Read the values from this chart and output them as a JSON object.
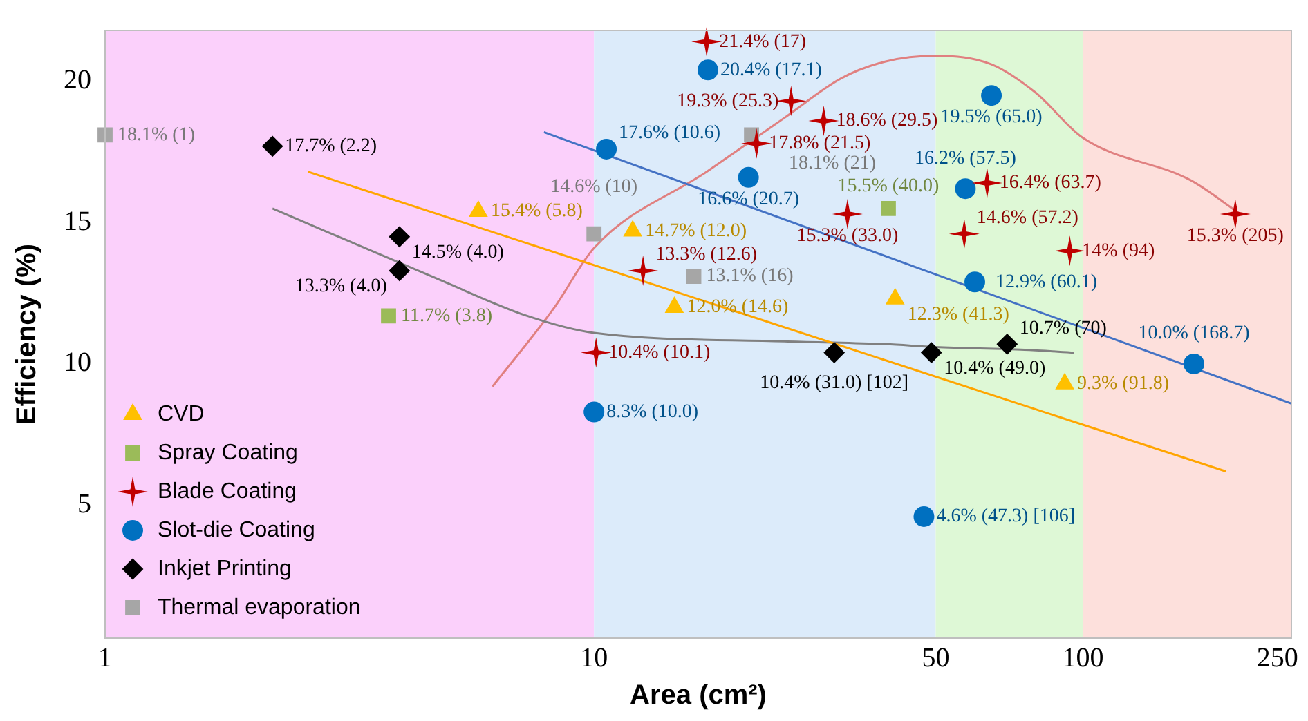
{
  "chart_data": {
    "type": "scatter",
    "xlabel": "Area (cm²)",
    "ylabel": "Efficiency (%)",
    "xlim": [
      1,
      267
    ],
    "xticks": [
      1,
      10,
      50,
      100,
      250
    ],
    "ylim": [
      0.3,
      21.8
    ],
    "yticks": [
      5,
      10,
      15,
      20
    ],
    "grid": false,
    "log": "x",
    "legend": "bottom left",
    "bands": [
      {
        "axis": "x",
        "from": 1,
        "to": 10,
        "color": "#fbd0fb"
      },
      {
        "axis": "x",
        "from": 10,
        "to": 50,
        "color": "#dcebfa"
      },
      {
        "axis": "x",
        "from": 50,
        "to": 100,
        "color": "#def8d6"
      },
      {
        "axis": "x",
        "from": 100,
        "to": 267,
        "color": "#fde0dc"
      }
    ],
    "series": [
      {
        "name": "CVD",
        "color": "#ffc000",
        "marker": "triangle",
        "x": [
          5.8,
          12.0,
          14.6,
          41.3,
          91.8
        ],
        "values": [
          15.4,
          14.7,
          12.0,
          12.3,
          9.3
        ],
        "value_labels": [
          "15.4% (5.8)",
          "14.7% (12.0)",
          "12.0% (14.6)",
          "12.3% (41.3)",
          "9.3% (91.8)"
        ]
      },
      {
        "name": "Spray Coating",
        "color": "#9bbb59",
        "marker": "square",
        "x": [
          3.8,
          40.0
        ],
        "values": [
          11.7,
          15.5
        ],
        "value_labels": [
          "11.7% (3.8)",
          "15.5% (40.0)"
        ]
      },
      {
        "name": "Blade Coating",
        "color": "#c00000",
        "marker": "star",
        "x": [
          17,
          25.3,
          29.5,
          21.5,
          33.0,
          12.6,
          10.1,
          63.7,
          57.2,
          94,
          205
        ],
        "values": [
          21.4,
          19.3,
          18.6,
          17.8,
          15.3,
          13.3,
          10.4,
          16.4,
          14.6,
          14,
          15.3
        ],
        "value_labels": [
          "21.4% (17)",
          "19.3% (25.3)",
          "18.6% (29.5)",
          "17.8% (21.5)",
          "15.3% (33.0)",
          "13.3% (12.6)",
          "10.4% (10.1)",
          "16.4% (63.7)",
          "14.6% (57.2)",
          "14% (94)",
          "15.3% (205)"
        ]
      },
      {
        "name": "Slot-die Coating",
        "color": "#0070c0",
        "marker": "circle",
        "x": [
          17.1,
          10.6,
          20.7,
          10.0,
          65.0,
          57.5,
          60.1,
          47.3,
          168.7
        ],
        "values": [
          20.4,
          17.6,
          16.6,
          8.3,
          19.5,
          16.2,
          12.9,
          4.6,
          10.0
        ],
        "value_labels": [
          "20.4% (17.1)",
          "17.6% (10.6)",
          "16.6% (20.7)",
          "8.3% (10.0)",
          "19.5% (65.0)",
          "16.2% (57.5)",
          "12.9% (60.1)",
          "4.6% (47.3) [106]",
          "10.0% (168.7)"
        ]
      },
      {
        "name": "Inkjet Printing",
        "color": "#000000",
        "marker": "diamond",
        "x": [
          2.2,
          4.0,
          4.0,
          31.0,
          49.0,
          70
        ],
        "values": [
          17.7,
          14.5,
          13.3,
          10.4,
          10.4,
          10.7
        ],
        "value_labels": [
          "17.7% (2.2)",
          "14.5% (4.0)",
          "13.3% (4.0)",
          "10.4% (31.0) [102]",
          "10.4% (49.0)",
          "10.7% (70)"
        ]
      },
      {
        "name": "Thermal evaporation",
        "color": "#a6a6a6",
        "marker": "square",
        "x": [
          1,
          21,
          10,
          16
        ],
        "values": [
          18.1,
          18.1,
          14.6,
          13.1
        ],
        "value_labels": [
          "18.1% (1)",
          "18.1% (21)",
          "14.6% (10)",
          "13.1% (16)"
        ]
      },
      {
        "type": "line",
        "color": "#ffa500",
        "marker": "none",
        "x": [
          2.6,
          196
        ],
        "values": [
          16.8,
          6.2
        ]
      },
      {
        "type": "line",
        "color": "#4472c4",
        "marker": "none",
        "x": [
          7.9,
          267
        ],
        "values": [
          18.2,
          8.6
        ]
      },
      {
        "type": "line",
        "color": "#808080",
        "marker": "none",
        "x": [
          2.2,
          4.8,
          7.3,
          10,
          24.5,
          39.5,
          50,
          76,
          96
        ],
        "values": [
          15.5,
          13.0,
          11.7,
          11.1,
          10.8,
          10.7,
          10.6,
          10.5,
          10.4
        ]
      },
      {
        "type": "line",
        "color": "#e08080",
        "marker": "none",
        "x": [
          6.2,
          8.3,
          10,
          17,
          24.5,
          32,
          39.5,
          50,
          65,
          80,
          100,
          166,
          210
        ],
        "values": [
          9.2,
          12.0,
          14.1,
          16.8,
          18.7,
          20.1,
          20.7,
          20.9,
          20.6,
          19.6,
          18.0,
          16.5,
          15.3
        ]
      }
    ]
  }
}
